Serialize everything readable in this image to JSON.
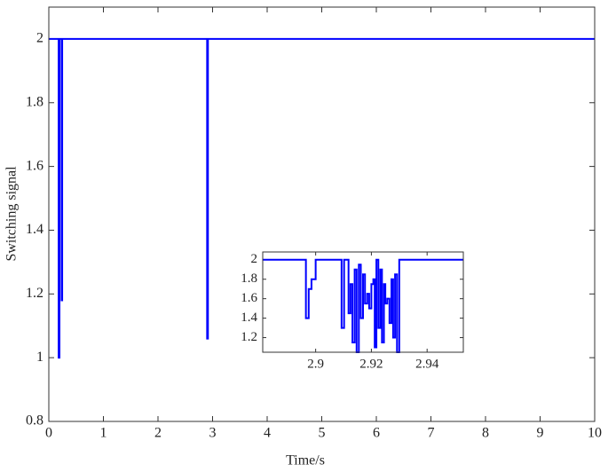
{
  "chart_data": [
    {
      "type": "line",
      "x_label": "Time/s",
      "y_label": "Switching signal",
      "step": "post",
      "x": [
        0,
        0.18,
        0.195,
        0.235,
        0.245,
        2.9,
        2.915,
        10
      ],
      "series": [
        {
          "color": "#0000ff",
          "values": [
            2,
            1,
            2,
            1.18,
            2,
            1.06,
            2,
            2
          ]
        }
      ],
      "xlim": [
        0,
        10
      ],
      "ylim": [
        0.8,
        2.1
      ],
      "xticks": [
        0,
        1,
        2,
        3,
        4,
        5,
        6,
        7,
        8,
        9,
        10
      ],
      "yticks": [
        0.8,
        1,
        1.2,
        1.4,
        1.6,
        1.8,
        2
      ]
    },
    {
      "type": "line",
      "step": "post",
      "x": [
        2.881,
        2.8965,
        2.8975,
        2.8985,
        2.9,
        2.9093,
        2.9102,
        2.9118,
        2.9125,
        2.9132,
        2.914,
        2.9147,
        2.9155,
        2.9162,
        2.917,
        2.9177,
        2.9185,
        2.9192,
        2.92,
        2.9207,
        2.9212,
        2.9218,
        2.9225,
        2.9232,
        2.9238,
        2.9245,
        2.925,
        2.9257,
        2.9265,
        2.9272,
        2.9278,
        2.9285,
        2.9292,
        2.93,
        2.953
      ],
      "series": [
        {
          "color": "#0000ff",
          "values": [
            2,
            1.4,
            1.7,
            1.8,
            2,
            1.3,
            2,
            1.45,
            1.75,
            1.15,
            1.9,
            1.05,
            1.95,
            1.4,
            1.85,
            1.55,
            1.65,
            1.5,
            1.75,
            1.8,
            1.1,
            2,
            1.3,
            1.9,
            1.15,
            1.75,
            1.55,
            1.6,
            1.35,
            1.8,
            1.2,
            1.85,
            1.05,
            2,
            2
          ]
        }
      ],
      "xlim": [
        2.881,
        2.953
      ],
      "ylim": [
        1.05,
        2.08
      ],
      "xticks": [
        2.9,
        2.92,
        2.94
      ],
      "yticks": [
        1.2,
        1.4,
        1.6,
        1.8,
        2
      ]
    }
  ]
}
